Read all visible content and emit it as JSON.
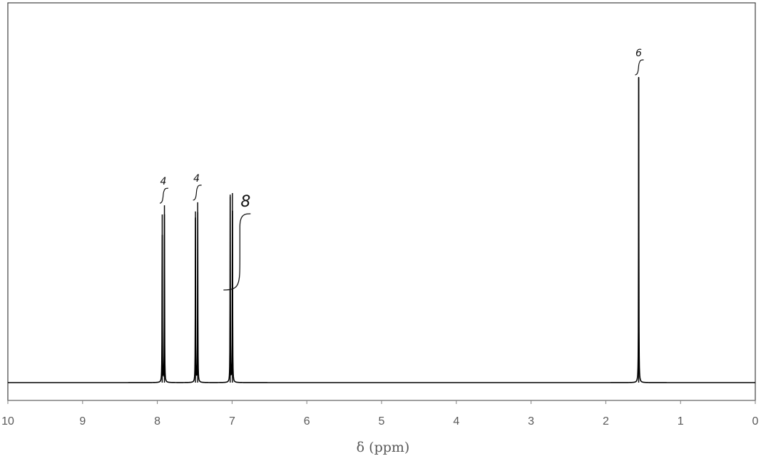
{
  "chart_data": {
    "type": "line",
    "title": "",
    "xlabel": "δ (ppm)",
    "ylabel": "",
    "xlim": [
      10,
      0
    ],
    "x_reversed": true,
    "ylim": [
      0,
      1.0
    ],
    "grid": false,
    "legend": "none",
    "x_ticks": [
      "10",
      "9",
      "8",
      "7",
      "6",
      "5",
      "4",
      "3",
      "2",
      "1",
      "0"
    ],
    "x_tick_values": [
      10,
      9,
      8,
      7,
      6,
      5,
      4,
      3,
      2,
      1,
      0
    ],
    "series": [
      {
        "peaks": [
          {
            "ppm": 7.935,
            "height": 0.55
          },
          {
            "ppm": 7.905,
            "height": 0.58
          },
          {
            "ppm": 7.49,
            "height": 0.56
          },
          {
            "ppm": 7.46,
            "height": 0.59
          },
          {
            "ppm": 7.025,
            "height": 0.615
          },
          {
            "ppm": 6.995,
            "height": 0.62
          },
          {
            "ppm": 1.56,
            "height": 1.0
          }
        ]
      }
    ],
    "integrals": [
      {
        "ppm": 7.92,
        "value": "4"
      },
      {
        "ppm": 7.475,
        "value": "4"
      },
      {
        "ppm": 7.01,
        "value": "8"
      },
      {
        "ppm": 1.56,
        "value": "6"
      }
    ],
    "line_color": "#000000",
    "axis_color": "#7f7f7f"
  }
}
